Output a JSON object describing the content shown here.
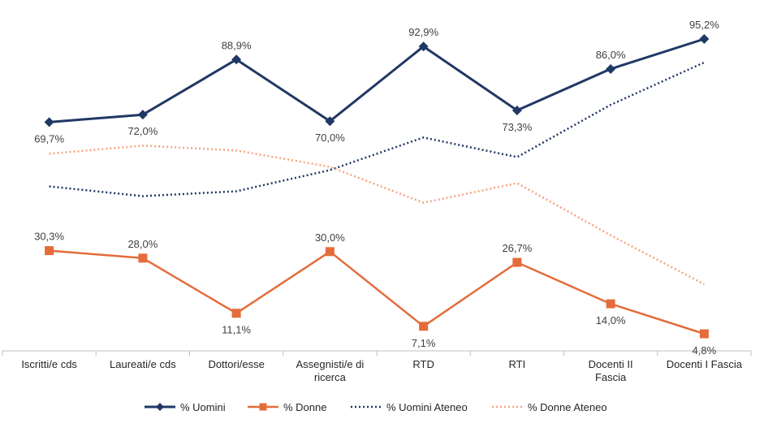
{
  "chart_data": {
    "type": "line",
    "categories": [
      "Iscritti/e cds",
      "Laureati/e cds",
      "Dottori/esse",
      "Assegnisti/e di ricerca",
      "RTD",
      "RTI",
      "Docenti II Fascia",
      "Docenti I Fascia"
    ],
    "ylim": [
      0,
      100
    ],
    "grid": false,
    "legend_position": "bottom",
    "colors": {
      "uomini": "#203864",
      "donne": "#E46C3A",
      "uomini_ateneo": "#203864",
      "donne_ateneo": "#F4A582"
    },
    "series": [
      {
        "name": "% Uomini",
        "style": "solid",
        "marker": "diamond",
        "values": [
          69.7,
          72.0,
          88.9,
          70.0,
          92.9,
          73.3,
          86.0,
          95.2
        ],
        "labels": [
          "69,7%",
          "72,0%",
          "88,9%",
          "70,0%",
          "92,9%",
          "73,3%",
          "86,0%",
          "95,2%"
        ]
      },
      {
        "name": "% Donne",
        "style": "solid",
        "marker": "square",
        "values": [
          30.3,
          28.0,
          11.1,
          30.0,
          7.1,
          26.7,
          14.0,
          4.8
        ],
        "labels": [
          "30,3%",
          "28,0%",
          "11,1%",
          "30,0%",
          "7,1%",
          "26,7%",
          "14,0%",
          "4,8%"
        ]
      },
      {
        "name": "% Uomini Ateneo",
        "style": "dotted",
        "marker": "none",
        "values": [
          50.0,
          47.0,
          48.5,
          55.0,
          65.0,
          59.0,
          75.0,
          88.0
        ]
      },
      {
        "name": "% Donne Ateneo",
        "style": "dotted",
        "marker": "none",
        "values": [
          60.0,
          62.5,
          61.0,
          56.0,
          45.0,
          51.0,
          35.0,
          20.0
        ]
      }
    ]
  }
}
